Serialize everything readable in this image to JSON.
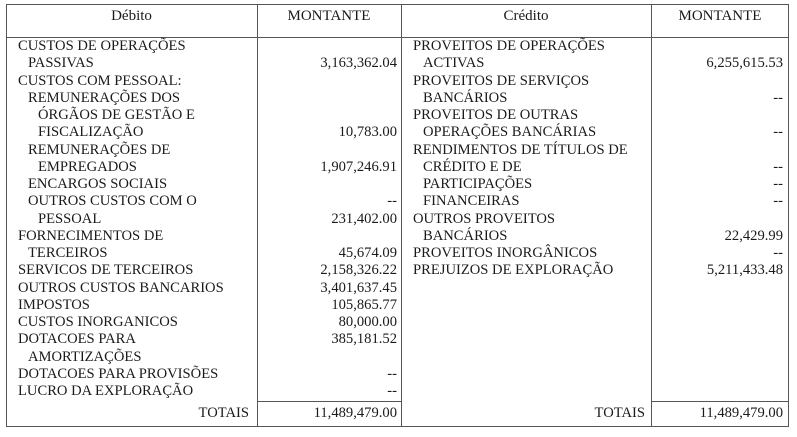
{
  "debito": {
    "header": "Débito",
    "amount_header": "MONTANTE",
    "lines": [
      {
        "label": "CUSTOS DE OPERAÇÕES",
        "indent": 0,
        "amount": ""
      },
      {
        "label": "PASSIVAS",
        "indent": 1,
        "amount": "3,163,362.04"
      },
      {
        "label": "CUSTOS COM PESSOAL:",
        "indent": 0,
        "amount": ""
      },
      {
        "label": "REMUNERAÇÕES DOS",
        "indent": 1,
        "amount": ""
      },
      {
        "label": "ÓRGÃOS DE GESTÃO E",
        "indent": 2,
        "amount": ""
      },
      {
        "label": "FISCALIZAÇÃO",
        "indent": 2,
        "amount": "10,783.00"
      },
      {
        "label": "REMUNERAÇÕES DE",
        "indent": 1,
        "amount": ""
      },
      {
        "label": "EMPREGADOS",
        "indent": 2,
        "amount": "1,907,246.91"
      },
      {
        "label": "ENCARGOS SOCIAIS",
        "indent": 1,
        "amount": ""
      },
      {
        "label": "OUTROS CUSTOS COM O",
        "indent": 1,
        "amount": "--"
      },
      {
        "label": "PESSOAL",
        "indent": 2,
        "amount": "231,402.00"
      },
      {
        "label": "FORNECIMENTOS DE",
        "indent": 0,
        "amount": ""
      },
      {
        "label": "TERCEIROS",
        "indent": 1,
        "amount": "45,674.09"
      },
      {
        "label": "SERVICOS DE TERCEIROS",
        "indent": 0,
        "amount": "2,158,326.22"
      },
      {
        "label": "OUTROS CUSTOS BANCARIOS",
        "indent": 0,
        "amount": "3,401,637.45"
      },
      {
        "label": "IMPOSTOS",
        "indent": 0,
        "amount": "105,865.77"
      },
      {
        "label": "CUSTOS INORGANICOS",
        "indent": 0,
        "amount": "80,000.00"
      },
      {
        "label": "DOTACOES PARA",
        "indent": 0,
        "amount": "385,181.52"
      },
      {
        "label": "AMORTIZAÇÕES",
        "indent": 1,
        "amount": ""
      },
      {
        "label": "DOTACOES PARA PROVISÕES",
        "indent": 0,
        "amount": "--"
      },
      {
        "label": "LUCRO DA EXPLORAÇÃO",
        "indent": 0,
        "amount": "--"
      }
    ],
    "total_label": "TOTAIS",
    "total_amount": "11,489,479.00"
  },
  "credito": {
    "header": "Crédito",
    "amount_header": "MONTANTE",
    "lines": [
      {
        "label": "PROVEITOS DE OPERAÇÕES",
        "indent": 0,
        "amount": ""
      },
      {
        "label": "ACTIVAS",
        "indent": 1,
        "amount": "6,255,615.53"
      },
      {
        "label": "PROVEITOS DE SERVIÇOS",
        "indent": 0,
        "amount": ""
      },
      {
        "label": "BANCÁRIOS",
        "indent": 1,
        "amount": "--"
      },
      {
        "label": "PROVEITOS DE OUTRAS",
        "indent": 0,
        "amount": ""
      },
      {
        "label": "OPERAÇÕES BANCÁRIAS",
        "indent": 1,
        "amount": "--"
      },
      {
        "label": "RENDIMENTOS DE TÍTULOS DE",
        "indent": 0,
        "amount": ""
      },
      {
        "label": "CRÉDITO E DE",
        "indent": 1,
        "amount": "--"
      },
      {
        "label": "PARTICIPAÇÕES",
        "indent": 1,
        "amount": "--"
      },
      {
        "label": "FINANCEIRAS",
        "indent": 1,
        "amount": "--"
      },
      {
        "label": "OUTROS PROVEITOS",
        "indent": 0,
        "amount": ""
      },
      {
        "label": "BANCÁRIOS",
        "indent": 1,
        "amount": "22,429.99"
      },
      {
        "label": "PROVEITOS INORGÂNICOS",
        "indent": 0,
        "amount": "--"
      },
      {
        "label": "PREJUIZOS DE EXPLORAÇÃO",
        "indent": 0,
        "amount": "5,211,433.48"
      }
    ],
    "total_label": "TOTAIS",
    "total_amount": "11,489,479.00"
  }
}
